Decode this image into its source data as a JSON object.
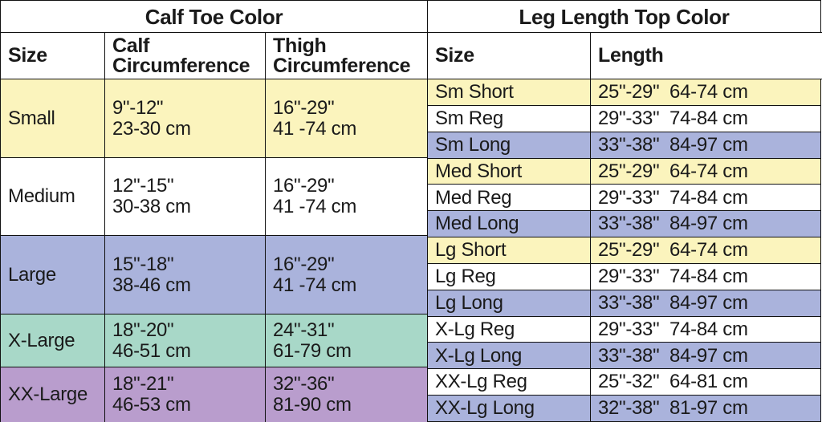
{
  "left_table": {
    "title": "Calf Toe Color",
    "header": [
      "Size",
      [
        "Calf",
        "Circumference"
      ],
      [
        "Thigh",
        "Circumference"
      ]
    ],
    "rows": [
      [
        "Small",
        [
          "9\"-12\"",
          "23-30 cm"
        ],
        [
          "16\"-29\"",
          "41 -74 cm"
        ]
      ],
      [
        "Medium",
        [
          "12\"-15\"",
          "30-38 cm"
        ],
        [
          "16\"-29\"",
          "41 -74 cm"
        ]
      ],
      [
        "Large",
        [
          "15\"-18\"",
          "38-46 cm"
        ],
        [
          "16\"-29\"",
          "41 -74 cm"
        ]
      ],
      [
        "X-Large",
        [
          "18\"-20\"",
          "46-51 cm"
        ],
        [
          "24\"-31\"",
          "61-79 cm"
        ]
      ],
      [
        "XX-Large",
        [
          "18\"-21\"",
          "46-53 cm"
        ],
        [
          "32\"-36\"",
          "81-90 cm"
        ]
      ]
    ]
  },
  "right_table": {
    "title": "Leg Length Top Color",
    "header": [
      "Size",
      "Length"
    ],
    "rows": [
      [
        "Sm Short",
        "25\"-29\"  64-74 cm"
      ],
      [
        "Sm Reg",
        "29\"-33\"  74-84 cm"
      ],
      [
        "Sm Long",
        "33\"-38\"  84-97 cm"
      ],
      [
        "Med Short",
        "25\"-29\"  64-74 cm"
      ],
      [
        "Med Reg",
        "29\"-33\"  74-84 cm"
      ],
      [
        "Med Long",
        "33\"-38\"  84-97 cm"
      ],
      [
        "Lg Short",
        "25\"-29\"  64-74 cm"
      ],
      [
        "Lg Reg",
        "29\"-33\"  74-84 cm"
      ],
      [
        "Lg Long",
        "33\"-38\"  84-97 cm"
      ],
      [
        "X-Lg Reg",
        "29\"-33\"  74-84 cm"
      ],
      [
        "X-Lg Long",
        "33\"-38\"  84-97 cm"
      ],
      [
        "XX-Lg Reg",
        "25\"-32\"  64-81 cm"
      ],
      [
        "XX-Lg Long",
        "32\"-38\"  81-97 cm"
      ]
    ]
  }
}
